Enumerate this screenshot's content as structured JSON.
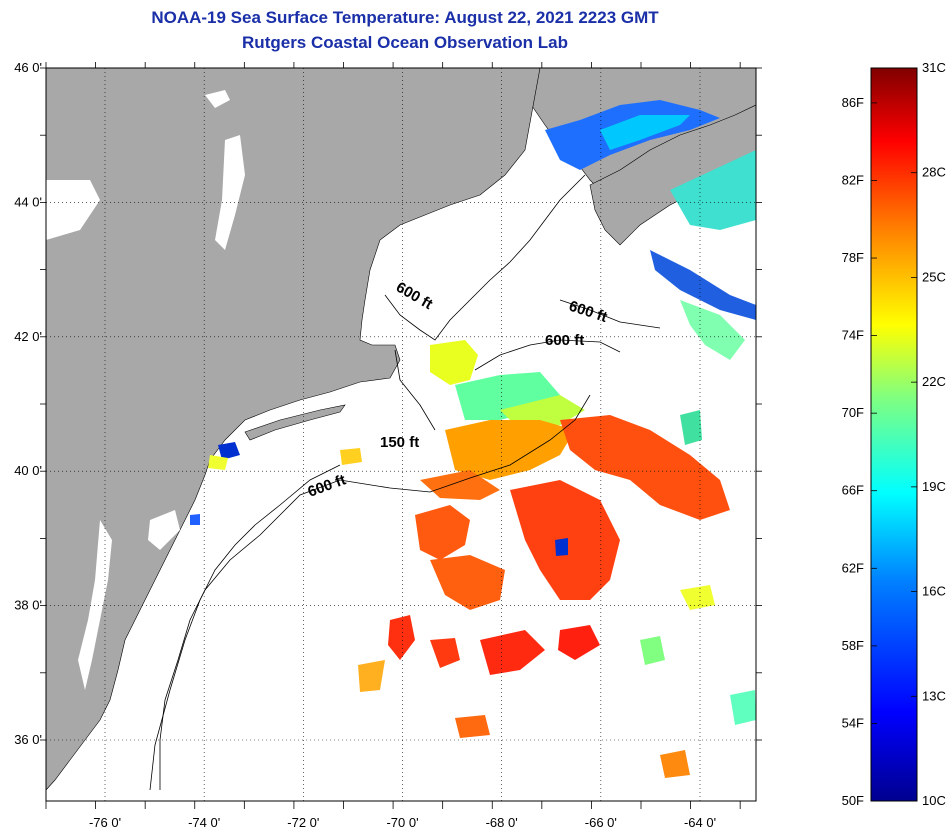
{
  "title": {
    "line1": "NOAA-19 Sea Surface Temperature:  August 22, 2021 2223 GMT",
    "line2": "Rutgers Coastal Ocean Observation Lab"
  },
  "axes": {
    "x_ticks": [
      "-76 0'",
      "-74 0'",
      "-72 0'",
      "-70 0'",
      "-68 0'",
      "-66 0'",
      "-64 0'"
    ],
    "y_ticks": [
      "46 0'",
      "44 0'",
      "42 0'",
      "40 0'",
      "38 0'",
      "36 0'"
    ]
  },
  "contours": [
    {
      "label": "600 ft"
    },
    {
      "label": "600 ft"
    },
    {
      "label": "600 ft"
    },
    {
      "label": "150 ft"
    },
    {
      "label": "600 ft"
    }
  ],
  "colorbar": {
    "fahrenheit": [
      "86F",
      "82F",
      "78F",
      "74F",
      "70F",
      "66F",
      "62F",
      "58F",
      "54F",
      "50F"
    ],
    "celsius": [
      "31C",
      "28C",
      "25C",
      "22C",
      "19C",
      "16C",
      "13C",
      "10C"
    ],
    "stops": [
      "#00008f",
      "#0000ff",
      "#0080ff",
      "#00ffff",
      "#80ff80",
      "#ffff00",
      "#ff8000",
      "#ff0000",
      "#800000"
    ]
  },
  "colors": {
    "land": "#a8a8a8",
    "ocean_no_data": "#ffffff",
    "title": "#1a2fa8"
  }
}
